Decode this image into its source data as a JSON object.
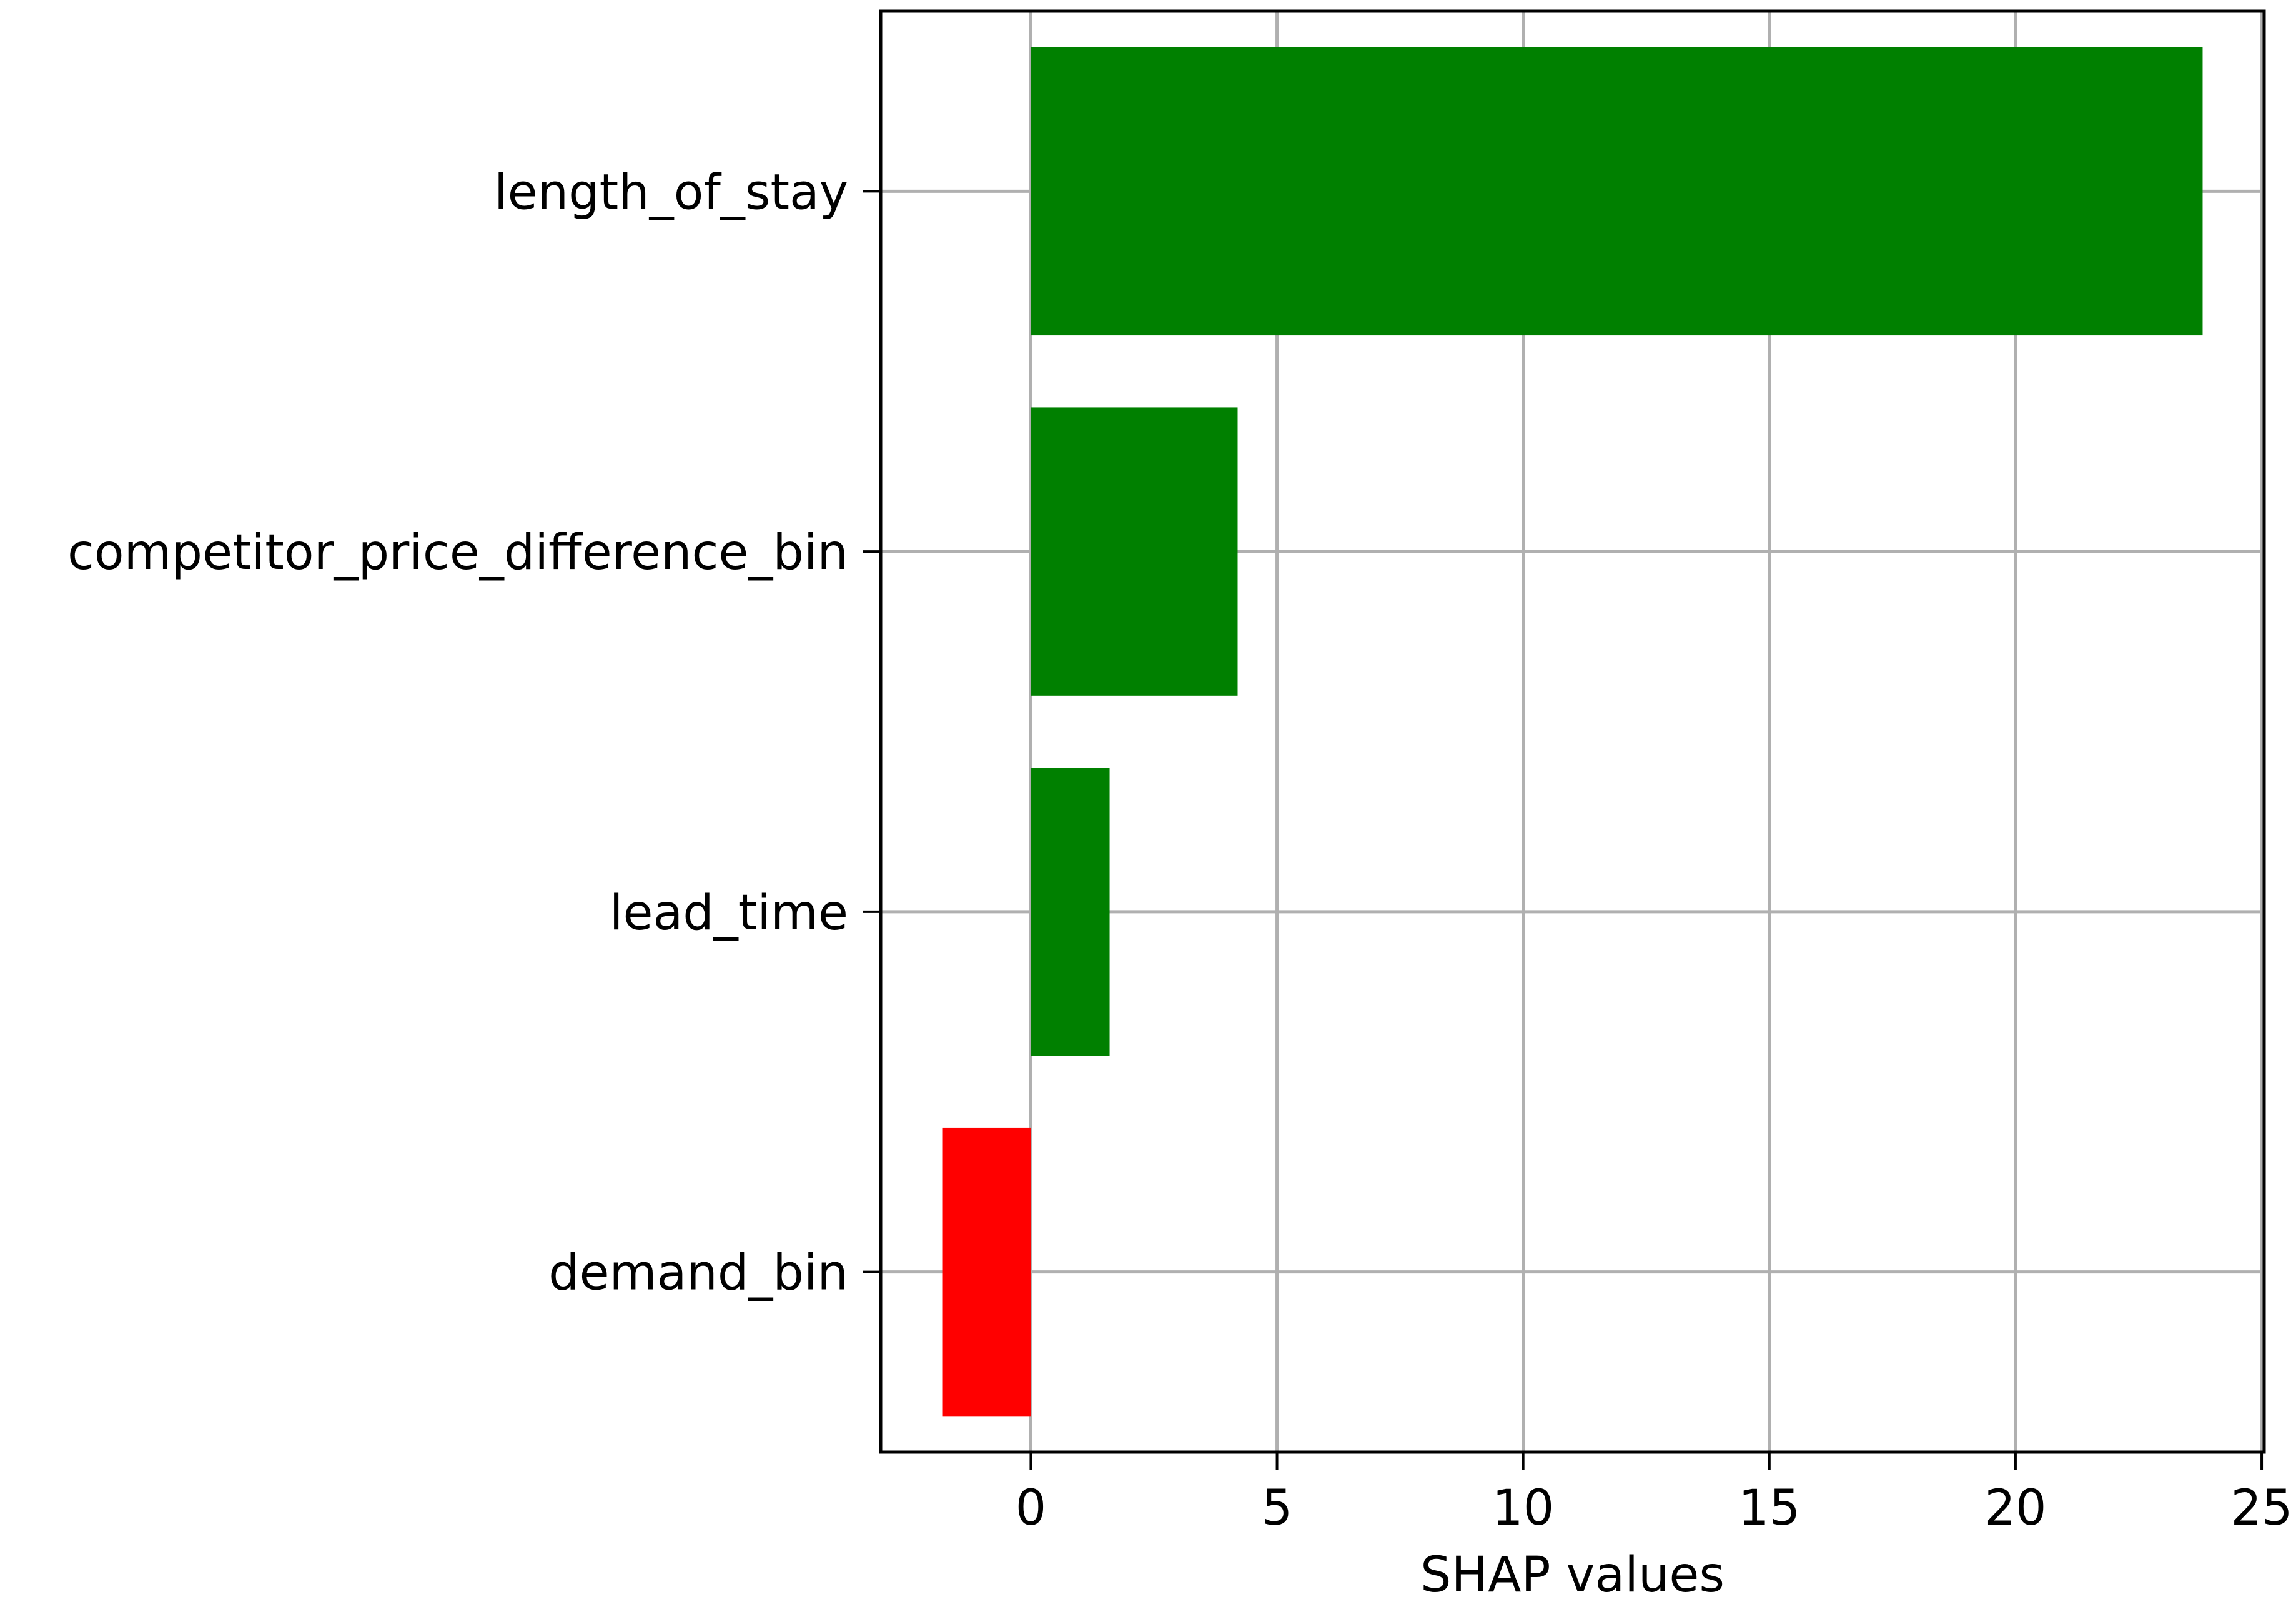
{
  "chart_data": {
    "type": "bar",
    "orientation": "horizontal",
    "categories": [
      "length_of_stay",
      "competitor_price_difference_bin",
      "lead_time",
      "demand_bin"
    ],
    "values": [
      23.8,
      4.2,
      1.6,
      -1.8
    ],
    "bar_colors": [
      "#008000",
      "#008000",
      "#008000",
      "#ff0000"
    ],
    "positive_color": "#008000",
    "negative_color": "#ff0000",
    "title": "",
    "xlabel": "SHAP values",
    "ylabel": "",
    "xlim": [
      -3.05,
      25.05
    ],
    "xticks": [
      0,
      5,
      10,
      15,
      20,
      25
    ],
    "xtick_labels": [
      "0",
      "5",
      "10",
      "15",
      "20",
      "25"
    ],
    "grid": true,
    "legend": "none"
  }
}
